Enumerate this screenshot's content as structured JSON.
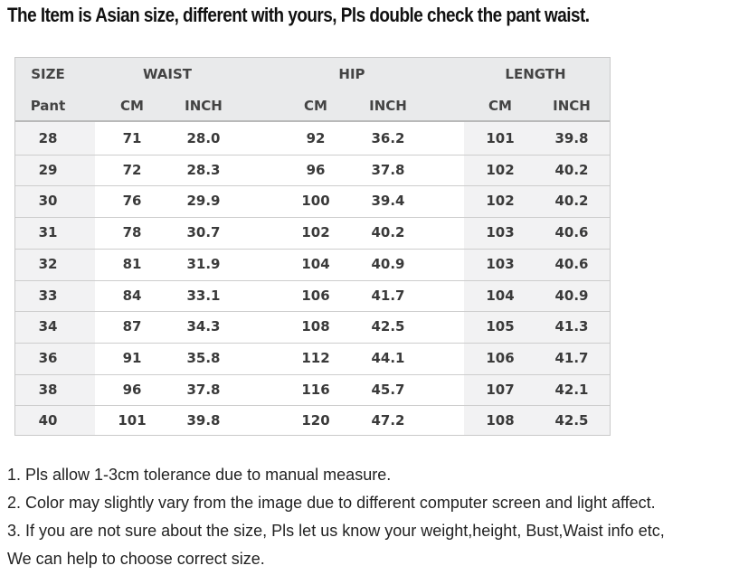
{
  "headline": "The Item is Asian size, different with yours, Pls double check the pant waist.",
  "size_table": {
    "group_headers": [
      "SIZE",
      "WAIST",
      "HIP",
      "LENGTH"
    ],
    "sub_headers": [
      "Pant",
      "CM",
      "INCH",
      "CM",
      "INCH",
      "CM",
      "INCH"
    ],
    "rows": [
      [
        "28",
        "71",
        "28.0",
        "92",
        "36.2",
        "101",
        "39.8"
      ],
      [
        "29",
        "72",
        "28.3",
        "96",
        "37.8",
        "102",
        "40.2"
      ],
      [
        "30",
        "76",
        "29.9",
        "100",
        "39.4",
        "102",
        "40.2"
      ],
      [
        "31",
        "78",
        "30.7",
        "102",
        "40.2",
        "103",
        "40.6"
      ],
      [
        "32",
        "81",
        "31.9",
        "104",
        "40.9",
        "103",
        "40.6"
      ],
      [
        "33",
        "84",
        "33.1",
        "106",
        "41.7",
        "104",
        "40.9"
      ],
      [
        "34",
        "87",
        "34.3",
        "108",
        "42.5",
        "105",
        "41.3"
      ],
      [
        "36",
        "91",
        "35.8",
        "112",
        "44.1",
        "106",
        "41.7"
      ],
      [
        "38",
        "96",
        "37.8",
        "116",
        "45.7",
        "107",
        "42.1"
      ],
      [
        "40",
        "101",
        "39.8",
        "120",
        "47.2",
        "108",
        "42.5"
      ]
    ]
  },
  "notes": [
    "1. Pls allow 1-3cm tolerance due to manual measure.",
    "2. Color may slightly vary from the image due to different computer screen and light affect.",
    "3. If you are not sure about the size, Pls let us know your weight,height, Bust,Waist info etc,",
    "We can help to choose correct size."
  ]
}
